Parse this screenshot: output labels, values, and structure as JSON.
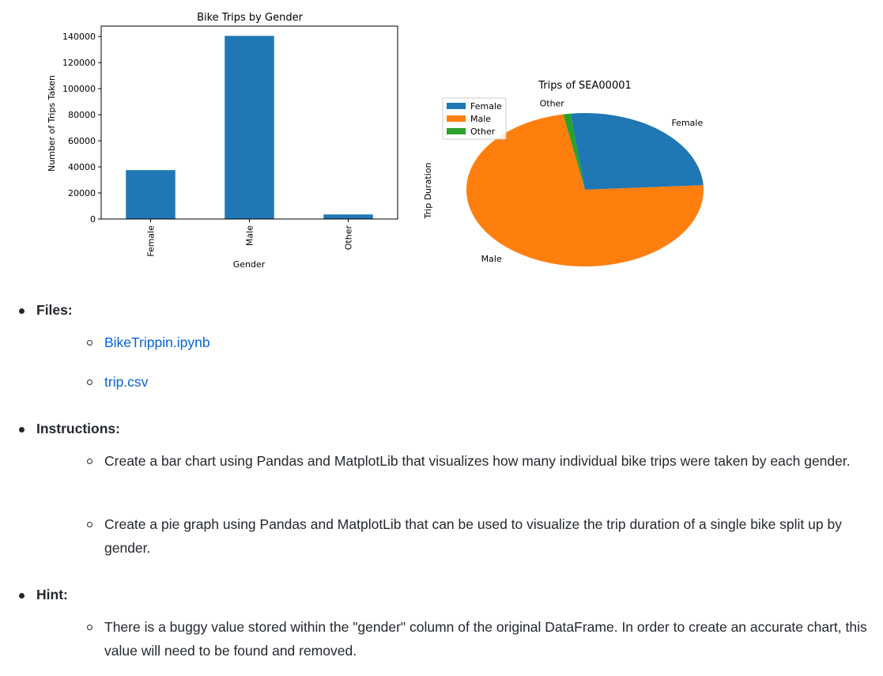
{
  "chart_data": [
    {
      "type": "bar",
      "title": "Bike Trips by Gender",
      "xlabel": "Gender",
      "ylabel": "Number of Trips Taken",
      "categories": [
        "Female",
        "Male",
        "Other"
      ],
      "values": [
        37500,
        140500,
        3500
      ],
      "ylim": [
        0,
        140000
      ],
      "yticks": [
        0,
        20000,
        40000,
        60000,
        80000,
        100000,
        120000,
        140000
      ],
      "ytick_labels": [
        "0",
        "20000",
        "40000",
        "60000",
        "80000",
        "100000",
        "120000",
        "140000"
      ],
      "color": "#1f77b4",
      "grid": false
    },
    {
      "type": "pie",
      "title": "Trips of SEA00001",
      "ylabel": "Trip Duration",
      "labels": [
        "Female",
        "Male",
        "Other"
      ],
      "values": [
        26,
        73,
        1
      ],
      "colors": [
        "#1f77b4",
        "#ff7f0e",
        "#2ca02c"
      ],
      "legend": "top-left"
    }
  ],
  "content": {
    "files_heading": "Files:",
    "files": [
      "BikeTrippin.ipynb",
      "trip.csv"
    ],
    "instructions_heading": "Instructions:",
    "instructions": [
      "Create a bar chart using Pandas and MatplotLib that visualizes how many individual bike trips were taken by each gender.",
      "Create a pie graph using Pandas and MatplotLib that can be used to visualize the trip duration of a single bike split up by gender."
    ],
    "hint_heading": "Hint:",
    "hints": [
      "There is a buggy value stored within the \"gender\" column of the original DataFrame. In order to create an accurate chart, this value will need to be found and removed."
    ]
  }
}
